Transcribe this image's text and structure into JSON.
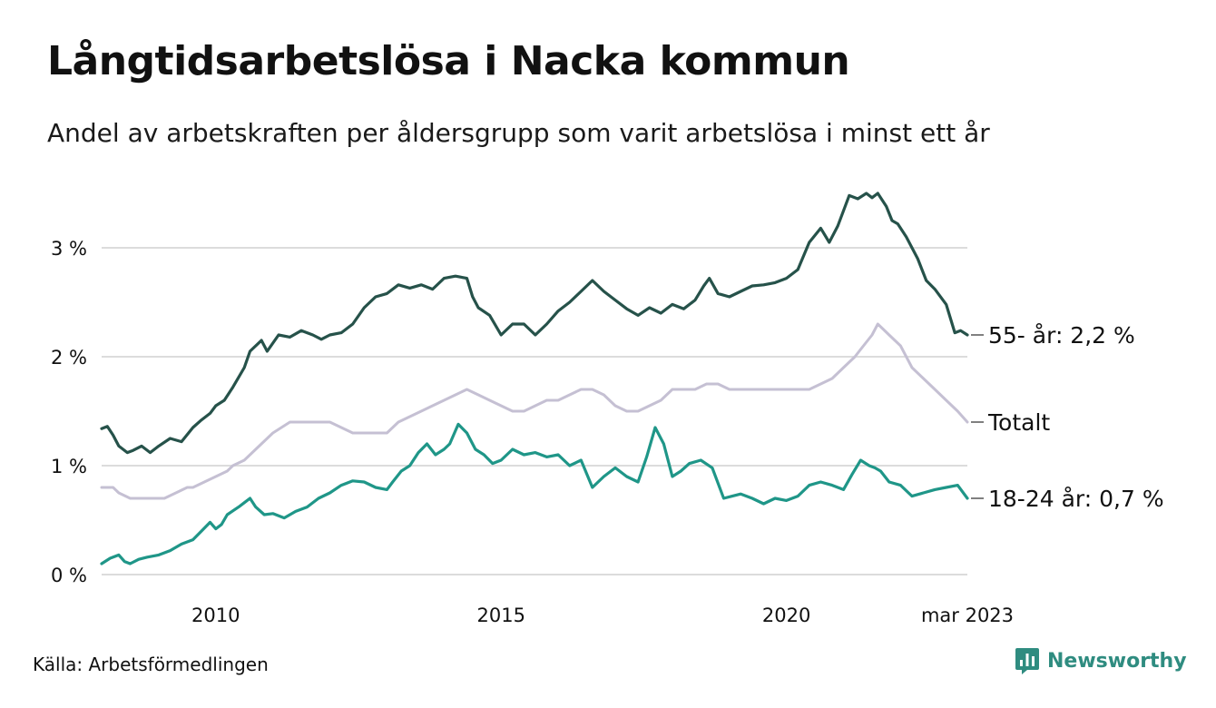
{
  "title": "Långtidsarbetslösa i Nacka kommun",
  "subtitle": "Andel av arbetskraften per åldersgrupp som varit arbetslösa i minst ett år",
  "source": "Källa: Arbetsförmedlingen",
  "brand": "Newsworthy",
  "colors": {
    "series_55": "#26524a",
    "series_total": "#c5c0d3",
    "series_18_24": "#1f9688",
    "grid": "#dcdcdc",
    "brand": "#2f8c80"
  },
  "chart_data": {
    "type": "line",
    "x_unit": "year",
    "xlim": [
      2008.0,
      2023.17
    ],
    "ylim": [
      0,
      3.6
    ],
    "y_ticks": [
      0,
      1,
      2,
      3
    ],
    "y_tick_labels": [
      "0 %",
      "1 %",
      "2 %",
      "3 %"
    ],
    "x_ticks": [
      2010,
      2015,
      2020,
      2023.17
    ],
    "x_tick_labels": [
      "2010",
      "2015",
      "2020",
      "mar 2023"
    ],
    "grid": "horizontal",
    "legend": "end-of-line labels",
    "series": [
      {
        "key": "55",
        "label": "55- år: 2,2 %",
        "x": [
          2008.0,
          2008.1,
          2008.2,
          2008.3,
          2008.45,
          2008.55,
          2008.7,
          2008.85,
          2009.0,
          2009.2,
          2009.4,
          2009.6,
          2009.75,
          2009.9,
          2010.0,
          2010.15,
          2010.3,
          2010.5,
          2010.6,
          2010.7,
          2010.8,
          2010.9,
          2011.1,
          2011.3,
          2011.5,
          2011.7,
          2011.85,
          2012.0,
          2012.2,
          2012.4,
          2012.6,
          2012.8,
          2013.0,
          2013.2,
          2013.4,
          2013.6,
          2013.8,
          2014.0,
          2014.2,
          2014.4,
          2014.5,
          2014.6,
          2014.8,
          2015.0,
          2015.2,
          2015.4,
          2015.6,
          2015.8,
          2016.0,
          2016.2,
          2016.4,
          2016.6,
          2016.8,
          2017.0,
          2017.2,
          2017.4,
          2017.6,
          2017.8,
          2018.0,
          2018.2,
          2018.4,
          2018.55,
          2018.65,
          2018.8,
          2019.0,
          2019.2,
          2019.4,
          2019.6,
          2019.8,
          2020.0,
          2020.2,
          2020.4,
          2020.6,
          2020.75,
          2020.9,
          2021.1,
          2021.25,
          2021.4,
          2021.5,
          2021.6,
          2021.75,
          2021.85,
          2021.95,
          2022.1,
          2022.3,
          2022.45,
          2022.6,
          2022.8,
          2022.95,
          2023.05,
          2023.17
        ],
        "values": [
          1.34,
          1.36,
          1.28,
          1.18,
          1.12,
          1.14,
          1.18,
          1.12,
          1.18,
          1.25,
          1.22,
          1.35,
          1.42,
          1.48,
          1.55,
          1.6,
          1.72,
          1.9,
          2.05,
          2.1,
          2.15,
          2.05,
          2.2,
          2.18,
          2.24,
          2.2,
          2.16,
          2.2,
          2.22,
          2.3,
          2.45,
          2.55,
          2.58,
          2.66,
          2.63,
          2.66,
          2.62,
          2.72,
          2.74,
          2.72,
          2.55,
          2.45,
          2.38,
          2.2,
          2.3,
          2.3,
          2.2,
          2.3,
          2.42,
          2.5,
          2.6,
          2.7,
          2.6,
          2.52,
          2.44,
          2.38,
          2.45,
          2.4,
          2.48,
          2.44,
          2.52,
          2.65,
          2.72,
          2.58,
          2.55,
          2.6,
          2.65,
          2.66,
          2.68,
          2.72,
          2.8,
          3.05,
          3.18,
          3.05,
          3.2,
          3.48,
          3.45,
          3.5,
          3.46,
          3.5,
          3.38,
          3.25,
          3.22,
          3.1,
          2.9,
          2.7,
          2.62,
          2.48,
          2.22,
          2.24,
          2.2
        ]
      },
      {
        "key": "total",
        "label": "Totalt",
        "x": [
          2008.0,
          2008.2,
          2008.3,
          2008.5,
          2008.7,
          2008.9,
          2009.1,
          2009.3,
          2009.5,
          2009.6,
          2009.8,
          2010.0,
          2010.2,
          2010.3,
          2010.5,
          2010.6,
          2010.8,
          2011.0,
          2011.3,
          2011.6,
          2011.8,
          2012.0,
          2012.2,
          2012.4,
          2012.6,
          2012.8,
          2013.0,
          2013.2,
          2013.4,
          2013.6,
          2013.8,
          2014.0,
          2014.2,
          2014.4,
          2014.6,
          2014.8,
          2015.0,
          2015.2,
          2015.4,
          2015.6,
          2015.8,
          2016.0,
          2016.2,
          2016.4,
          2016.6,
          2016.8,
          2017.0,
          2017.2,
          2017.4,
          2017.6,
          2017.8,
          2018.0,
          2018.2,
          2018.4,
          2018.6,
          2018.8,
          2019.0,
          2019.2,
          2019.4,
          2019.6,
          2019.8,
          2020.0,
          2020.2,
          2020.4,
          2020.6,
          2020.8,
          2021.0,
          2021.2,
          2021.35,
          2021.5,
          2021.6,
          2021.7,
          2021.8,
          2021.9,
          2022.0,
          2022.1,
          2022.2,
          2022.4,
          2022.6,
          2022.8,
          2023.0,
          2023.17
        ],
        "values": [
          0.8,
          0.8,
          0.75,
          0.7,
          0.7,
          0.7,
          0.7,
          0.75,
          0.8,
          0.8,
          0.85,
          0.9,
          0.95,
          1.0,
          1.05,
          1.1,
          1.2,
          1.3,
          1.4,
          1.4,
          1.4,
          1.4,
          1.35,
          1.3,
          1.3,
          1.3,
          1.3,
          1.4,
          1.45,
          1.5,
          1.55,
          1.6,
          1.65,
          1.7,
          1.65,
          1.6,
          1.55,
          1.5,
          1.5,
          1.55,
          1.6,
          1.6,
          1.65,
          1.7,
          1.7,
          1.65,
          1.55,
          1.5,
          1.5,
          1.55,
          1.6,
          1.7,
          1.7,
          1.7,
          1.75,
          1.75,
          1.7,
          1.7,
          1.7,
          1.7,
          1.7,
          1.7,
          1.7,
          1.7,
          1.75,
          1.8,
          1.9,
          2.0,
          2.1,
          2.2,
          2.3,
          2.25,
          2.2,
          2.15,
          2.1,
          2.0,
          1.9,
          1.8,
          1.7,
          1.6,
          1.5,
          1.4
        ]
      },
      {
        "key": "18_24",
        "label": "18-24 år: 0,7 %",
        "x": [
          2008.0,
          2008.15,
          2008.3,
          2008.4,
          2008.5,
          2008.65,
          2008.8,
          2009.0,
          2009.2,
          2009.4,
          2009.6,
          2009.75,
          2009.9,
          2010.0,
          2010.1,
          2010.2,
          2010.4,
          2010.5,
          2010.6,
          2010.7,
          2010.85,
          2011.0,
          2011.2,
          2011.4,
          2011.6,
          2011.8,
          2012.0,
          2012.2,
          2012.4,
          2012.6,
          2012.8,
          2013.0,
          2013.1,
          2013.25,
          2013.4,
          2013.55,
          2013.7,
          2013.85,
          2014.0,
          2014.1,
          2014.25,
          2014.4,
          2014.55,
          2014.7,
          2014.85,
          2015.0,
          2015.2,
          2015.4,
          2015.6,
          2015.8,
          2016.0,
          2016.2,
          2016.4,
          2016.6,
          2016.8,
          2017.0,
          2017.2,
          2017.4,
          2017.55,
          2017.7,
          2017.85,
          2018.0,
          2018.15,
          2018.3,
          2018.5,
          2018.7,
          2018.9,
          2019.05,
          2019.2,
          2019.4,
          2019.6,
          2019.8,
          2020.0,
          2020.2,
          2020.4,
          2020.6,
          2020.8,
          2021.0,
          2021.15,
          2021.3,
          2021.45,
          2021.55,
          2021.65,
          2021.8,
          2022.0,
          2022.2,
          2022.4,
          2022.6,
          2022.8,
          2023.0,
          2023.17
        ],
        "values": [
          0.1,
          0.15,
          0.18,
          0.12,
          0.1,
          0.14,
          0.16,
          0.18,
          0.22,
          0.28,
          0.32,
          0.4,
          0.48,
          0.42,
          0.46,
          0.55,
          0.62,
          0.66,
          0.7,
          0.62,
          0.55,
          0.56,
          0.52,
          0.58,
          0.62,
          0.7,
          0.75,
          0.82,
          0.86,
          0.85,
          0.8,
          0.78,
          0.85,
          0.95,
          1.0,
          1.12,
          1.2,
          1.1,
          1.15,
          1.2,
          1.38,
          1.3,
          1.15,
          1.1,
          1.02,
          1.05,
          1.15,
          1.1,
          1.12,
          1.08,
          1.1,
          1.0,
          1.05,
          0.8,
          0.9,
          0.98,
          0.9,
          0.85,
          1.08,
          1.35,
          1.2,
          0.9,
          0.95,
          1.02,
          1.05,
          0.98,
          0.7,
          0.72,
          0.74,
          0.7,
          0.65,
          0.7,
          0.68,
          0.72,
          0.82,
          0.85,
          0.82,
          0.78,
          0.92,
          1.05,
          1.0,
          0.98,
          0.95,
          0.85,
          0.82,
          0.72,
          0.75,
          0.78,
          0.8,
          0.82,
          0.7
        ]
      }
    ]
  }
}
